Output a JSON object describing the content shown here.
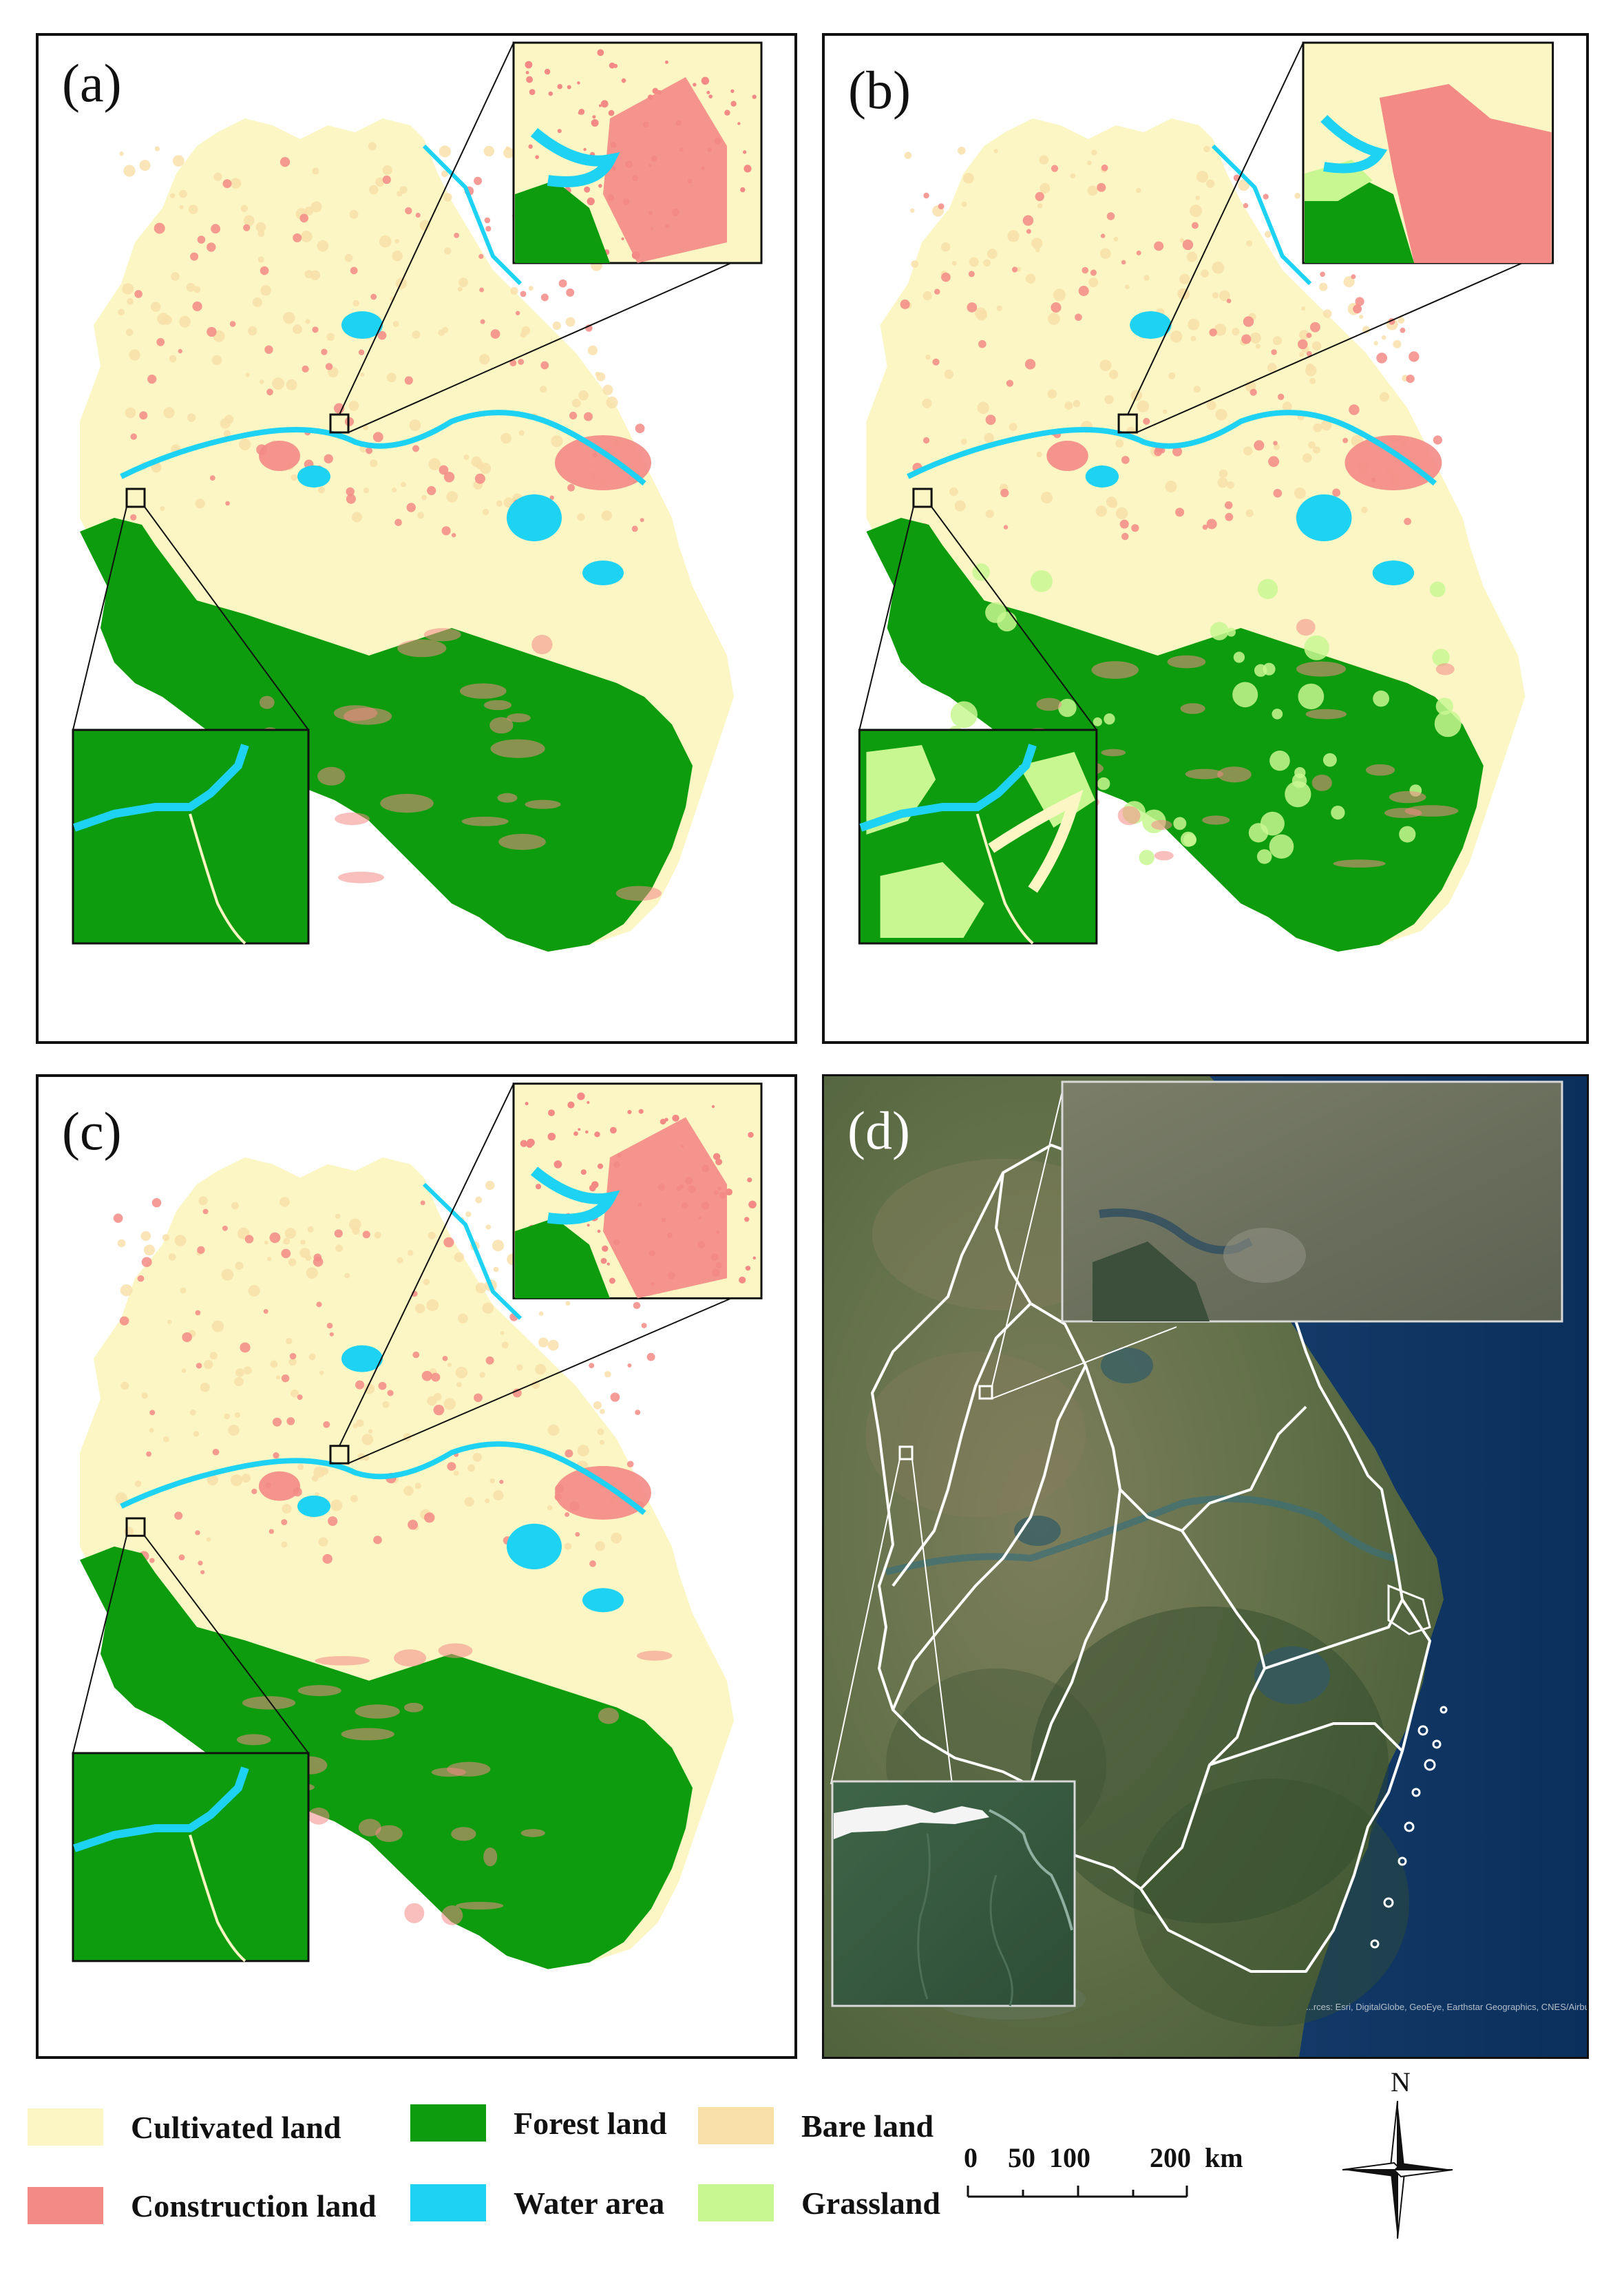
{
  "panels": [
    {
      "id": "a",
      "label": "(a)"
    },
    {
      "id": "b",
      "label": "(b)"
    },
    {
      "id": "c",
      "label": "(c)"
    },
    {
      "id": "d",
      "label": "(d)"
    }
  ],
  "attribution": "...rces: Esri, DigitalGlobe, GeoEye, Earthstar Geographics, CNES/Airbus DS, USDA FSA, USGS, AeroGRID, IGN, IGP, and the GIS User Community",
  "legend": {
    "items": [
      {
        "label": "Cultivated land",
        "color": "#fbf6c4"
      },
      {
        "label": "Forest land",
        "color": "#0d9c0d"
      },
      {
        "label": "Bare land",
        "color": "#f9dfa8"
      },
      {
        "label": "Construction land",
        "color": "#f38a86"
      },
      {
        "label": "Water area",
        "color": "#1ed2f4"
      },
      {
        "label": "Grassland",
        "color": "#c8f792"
      }
    ]
  },
  "scale_bar": {
    "ticks": [
      "0",
      "50",
      "100",
      "200"
    ],
    "unit": "km"
  },
  "north_arrow": {
    "label": "N"
  },
  "colors": {
    "cultivated": "#fbf6c4",
    "forest": "#0d9c0d",
    "bare": "#f9dfa8",
    "construction": "#f38a86",
    "water": "#1ed2f4",
    "grassland": "#c8f792",
    "sea": "#0f3a6b",
    "satellite_land": "#5f6e46"
  }
}
